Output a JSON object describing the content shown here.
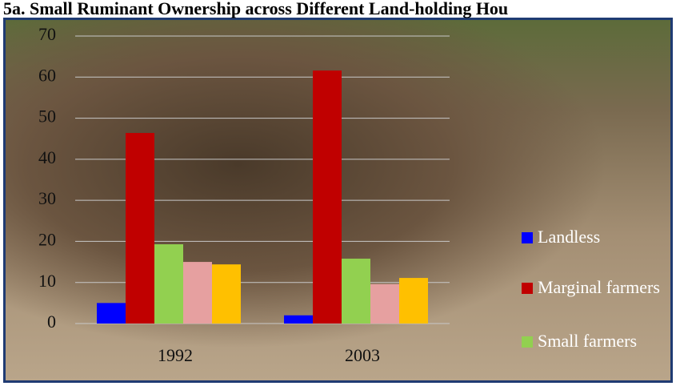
{
  "chart_data": {
    "type": "bar",
    "title": "5a. Small Ruminant Ownership across Different Land-holding Hou",
    "categories": [
      "1992",
      "2003"
    ],
    "series": [
      {
        "name": "Landless",
        "color": "#0000ff",
        "values": [
          5,
          2
        ]
      },
      {
        "name": "Marginal farmers",
        "color": "#c00000",
        "values": [
          46.4,
          61.6
        ]
      },
      {
        "name": "Small farmers",
        "color": "#92d050",
        "values": [
          19.3,
          15.8
        ]
      },
      {
        "color": "#e6a0a0",
        "values": [
          15,
          9.6
        ]
      },
      {
        "color": "#ffc000",
        "values": [
          14.4,
          11.1
        ]
      }
    ],
    "ylim": [
      0,
      70
    ],
    "yticks": [
      0,
      10,
      20,
      30,
      40,
      50,
      60,
      70
    ],
    "grid": true
  }
}
